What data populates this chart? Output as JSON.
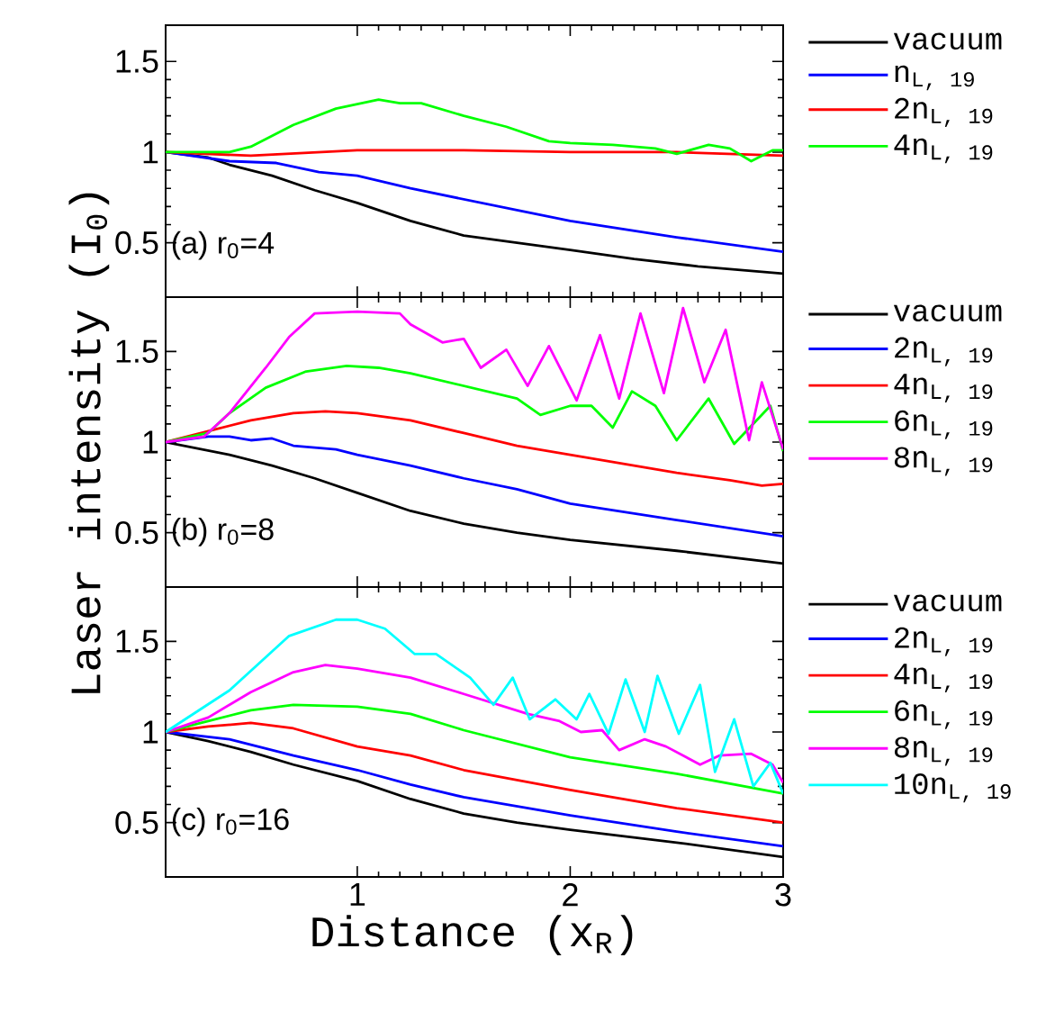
{
  "chart_data": [
    {
      "type": "line",
      "xlim": [
        0.1,
        3
      ],
      "ylim": [
        0.2,
        1.7
      ],
      "xticks": [
        1,
        2,
        3
      ],
      "yticks": [
        0.5,
        1,
        1.5
      ],
      "tick_labels": "y",
      "legend": "right",
      "annotations": [
        "(a) r$_{0}$=4"
      ],
      "series": [
        {
          "name": "vacuum",
          "color": "#000000",
          "x": [
            0.1,
            0.3,
            0.4,
            0.6,
            0.8,
            1,
            1.25,
            1.5,
            1.75,
            2,
            2.3,
            2.6,
            3
          ],
          "values": [
            1,
            0.97,
            0.93,
            0.87,
            0.79,
            0.72,
            0.62,
            0.54,
            0.5,
            0.46,
            0.41,
            0.37,
            0.33
          ]
        },
        {
          "name": "n$_{L, 19}$",
          "color": "#0000ff",
          "x": [
            0.1,
            0.4,
            0.62,
            0.82,
            1,
            1.25,
            1.5,
            1.75,
            2,
            2.5,
            3
          ],
          "values": [
            1,
            0.95,
            0.94,
            0.89,
            0.87,
            0.8,
            0.74,
            0.68,
            0.62,
            0.53,
            0.45
          ]
        },
        {
          "name": "2n$_{L, 19}$",
          "color": "#ff0000",
          "x": [
            0.1,
            0.5,
            1,
            1.5,
            2,
            2.5,
            3
          ],
          "values": [
            1,
            0.98,
            1.01,
            1.01,
            1,
            1,
            0.98
          ]
        },
        {
          "name": "4n$_{L, 19}$",
          "color": "#00ff00",
          "x": [
            0.1,
            0.4,
            0.5,
            0.7,
            0.9,
            1.1,
            1.2,
            1.3,
            1.5,
            1.7,
            1.9,
            2,
            2.2,
            2.4,
            2.5,
            2.65,
            2.75,
            2.85,
            2.95,
            3
          ],
          "values": [
            1,
            1,
            1.03,
            1.15,
            1.24,
            1.29,
            1.27,
            1.27,
            1.2,
            1.14,
            1.06,
            1.05,
            1.04,
            1.02,
            0.99,
            1.04,
            1.02,
            0.95,
            1.01,
            1.01
          ]
        }
      ]
    },
    {
      "type": "line",
      "xlim": [
        0.1,
        3
      ],
      "ylim": [
        0.2,
        1.8
      ],
      "xticks": [
        1,
        2,
        3
      ],
      "yticks": [
        0.5,
        1,
        1.5
      ],
      "tick_labels": "y",
      "legend": "right",
      "ylabel": "Laser intensity (I$_{0}$)",
      "annotations": [
        "(b) r$_{0}$=8"
      ],
      "series": [
        {
          "name": "vacuum",
          "color": "#000000",
          "x": [
            0.1,
            0.4,
            0.6,
            0.8,
            1,
            1.25,
            1.5,
            1.75,
            2,
            2.5,
            3
          ],
          "values": [
            1,
            0.93,
            0.87,
            0.8,
            0.72,
            0.62,
            0.55,
            0.5,
            0.46,
            0.4,
            0.33
          ]
        },
        {
          "name": "2n$_{L, 19}$",
          "color": "#0000ff",
          "x": [
            0.1,
            0.3,
            0.4,
            0.5,
            0.6,
            0.7,
            0.9,
            1,
            1.25,
            1.5,
            1.75,
            2,
            2.5,
            3
          ],
          "values": [
            1,
            1.03,
            1.03,
            1.01,
            1.02,
            0.98,
            0.96,
            0.93,
            0.87,
            0.8,
            0.74,
            0.66,
            0.57,
            0.48
          ]
        },
        {
          "name": "4n$_{L, 19}$",
          "color": "#ff0000",
          "x": [
            0.1,
            0.3,
            0.5,
            0.7,
            0.85,
            1,
            1.25,
            1.5,
            1.75,
            2,
            2.25,
            2.5,
            2.75,
            2.9,
            3
          ],
          "values": [
            1,
            1.06,
            1.12,
            1.16,
            1.17,
            1.16,
            1.12,
            1.05,
            0.98,
            0.93,
            0.88,
            0.83,
            0.79,
            0.76,
            0.77
          ]
        },
        {
          "name": "6n$_{L, 19}$",
          "color": "#00ff00",
          "x": [
            0.1,
            0.3,
            0.4,
            0.57,
            0.76,
            0.95,
            1.1,
            1.25,
            1.5,
            1.75,
            1.86,
            2,
            2.1,
            2.2,
            2.29,
            2.4,
            2.5,
            2.65,
            2.77,
            2.94,
            3
          ],
          "values": [
            1,
            1.05,
            1.16,
            1.3,
            1.39,
            1.42,
            1.41,
            1.38,
            1.31,
            1.24,
            1.15,
            1.2,
            1.2,
            1.08,
            1.28,
            1.2,
            1.01,
            1.24,
            0.99,
            1.2,
            0.95
          ]
        },
        {
          "name": "8n$_{L, 19}$",
          "color": "#ff00ff",
          "x": [
            0.1,
            0.28,
            0.4,
            0.57,
            0.68,
            0.8,
            1,
            1.2,
            1.25,
            1.4,
            1.5,
            1.58,
            1.7,
            1.8,
            1.9,
            2.03,
            2.14,
            2.23,
            2.33,
            2.44,
            2.53,
            2.63,
            2.73,
            2.84,
            2.9,
            3
          ],
          "values": [
            1,
            1.03,
            1.16,
            1.41,
            1.58,
            1.71,
            1.72,
            1.71,
            1.65,
            1.55,
            1.57,
            1.41,
            1.51,
            1.31,
            1.53,
            1.23,
            1.59,
            1.24,
            1.71,
            1.27,
            1.74,
            1.33,
            1.62,
            1.01,
            1.33,
            0.96
          ]
        }
      ]
    },
    {
      "type": "line",
      "xlim": [
        0.1,
        3
      ],
      "ylim": [
        0.2,
        1.8
      ],
      "xticks": [
        1,
        2,
        3
      ],
      "yticks": [
        0.5,
        1,
        1.5
      ],
      "legend": "right",
      "xlabel": "Distance (x$_{R}$)",
      "annotations": [
        "(c) r$_{0}$=16"
      ],
      "series": [
        {
          "name": "vacuum",
          "color": "#000000",
          "x": [
            0.1,
            0.3,
            0.5,
            0.7,
            1,
            1.25,
            1.5,
            1.75,
            2,
            2.5,
            3
          ],
          "values": [
            1,
            0.95,
            0.89,
            0.82,
            0.73,
            0.63,
            0.55,
            0.5,
            0.46,
            0.39,
            0.31
          ]
        },
        {
          "name": "2n$_{L, 19}$",
          "color": "#0000ff",
          "x": [
            0.1,
            0.4,
            0.7,
            1,
            1.25,
            1.5,
            2,
            2.5,
            3
          ],
          "values": [
            1,
            0.96,
            0.87,
            0.79,
            0.71,
            0.64,
            0.54,
            0.45,
            0.37
          ]
        },
        {
          "name": "4n$_{L, 19}$",
          "color": "#ff0000",
          "x": [
            0.1,
            0.3,
            0.5,
            0.7,
            1,
            1.25,
            1.5,
            2,
            2.5,
            3
          ],
          "values": [
            1,
            1.03,
            1.05,
            1.02,
            0.92,
            0.87,
            0.79,
            0.68,
            0.58,
            0.5
          ]
        },
        {
          "name": "6n$_{L, 19}$",
          "color": "#00ff00",
          "x": [
            0.1,
            0.3,
            0.5,
            0.7,
            1,
            1.25,
            1.5,
            2,
            2.5,
            3
          ],
          "values": [
            1,
            1.06,
            1.12,
            1.15,
            1.14,
            1.1,
            1.01,
            0.86,
            0.77,
            0.66
          ]
        },
        {
          "name": "8n$_{L, 19}$",
          "color": "#ff00ff",
          "x": [
            0.1,
            0.3,
            0.5,
            0.7,
            0.85,
            1,
            1.25,
            1.5,
            1.8,
            1.95,
            2.05,
            2.15,
            2.23,
            2.35,
            2.45,
            2.61,
            2.7,
            2.85,
            2.95,
            3
          ],
          "values": [
            1,
            1.08,
            1.22,
            1.33,
            1.37,
            1.35,
            1.3,
            1.21,
            1.1,
            1.06,
            1.0,
            1.01,
            0.9,
            0.96,
            0.92,
            0.82,
            0.87,
            0.88,
            0.82,
            0.72
          ]
        },
        {
          "name": "10n$_{L, 19}$",
          "color": "#00ffff",
          "x": [
            0.1,
            0.4,
            0.68,
            0.9,
            1,
            1.13,
            1.27,
            1.37,
            1.53,
            1.64,
            1.73,
            1.81,
            1.93,
            2.03,
            2.09,
            2.18,
            2.26,
            2.35,
            2.41,
            2.51,
            2.61,
            2.68,
            2.77,
            2.86,
            2.94,
            3
          ],
          "values": [
            1,
            1.23,
            1.53,
            1.62,
            1.62,
            1.57,
            1.43,
            1.43,
            1.3,
            1.15,
            1.3,
            1.07,
            1.18,
            1.07,
            1.21,
            0.99,
            1.29,
            1.0,
            1.31,
            0.99,
            1.26,
            0.78,
            1.07,
            0.7,
            0.83,
            0.66
          ]
        }
      ]
    }
  ]
}
